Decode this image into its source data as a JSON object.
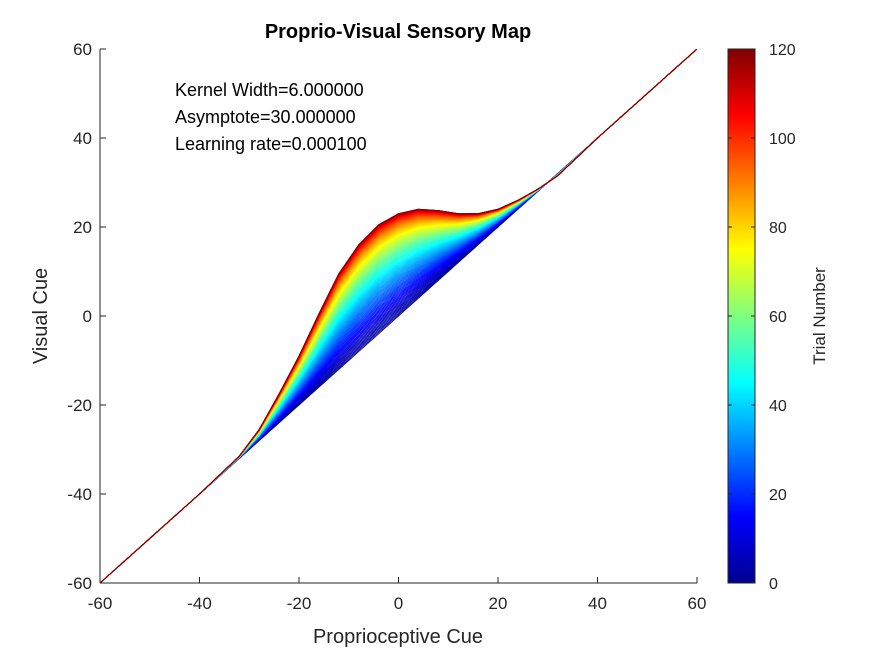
{
  "chart_data": {
    "type": "line",
    "title": "Proprio-Visual Sensory Map",
    "xlabel": "Proprioceptive Cue",
    "ylabel": "Visual Cue",
    "xlim": [
      -60,
      60
    ],
    "ylim": [
      -60,
      60
    ],
    "xticks": [
      -60,
      -40,
      -20,
      0,
      20,
      40,
      60
    ],
    "yticks": [
      -60,
      -40,
      -20,
      0,
      20,
      40,
      60
    ],
    "grid": false,
    "annotations": [
      "Kernel Width=6.000000",
      "Asymptote=30.000000",
      "Learning rate=0.000100"
    ],
    "colorbar": {
      "label": "Trial Number",
      "colormap": "jet",
      "range": [
        0,
        120
      ],
      "ticks": [
        0,
        20,
        40,
        60,
        80,
        100,
        120
      ]
    },
    "series_encoding": "one line per trial; line color = trial number on colorbar",
    "first_trial_curve": {
      "trial": 0,
      "x": [
        -60,
        -40,
        -30,
        -20,
        -10,
        0,
        10,
        20,
        30,
        40,
        60
      ],
      "y": [
        -60,
        -40,
        -30,
        -20,
        -10,
        0,
        10,
        20,
        30,
        40,
        60
      ]
    },
    "final_trial_curve": {
      "trial": 120,
      "x": [
        -60,
        -40,
        -32,
        -28,
        -24,
        -20,
        -16,
        -12,
        -8,
        -4,
        0,
        4,
        8,
        12,
        16,
        20,
        24,
        28,
        32,
        40,
        60
      ],
      "y": [
        -60,
        -40,
        -31.5,
        -25.5,
        -17.5,
        -9,
        0.5,
        9.5,
        16,
        20.5,
        23,
        24,
        23.7,
        23,
        23,
        24,
        26,
        28.5,
        31.5,
        40,
        60
      ]
    }
  },
  "colors": {
    "axis": "#262626",
    "colormap_stops": [
      "#00008f",
      "#0000ff",
      "#00ffff",
      "#ffff00",
      "#ff0000",
      "#800000"
    ]
  }
}
